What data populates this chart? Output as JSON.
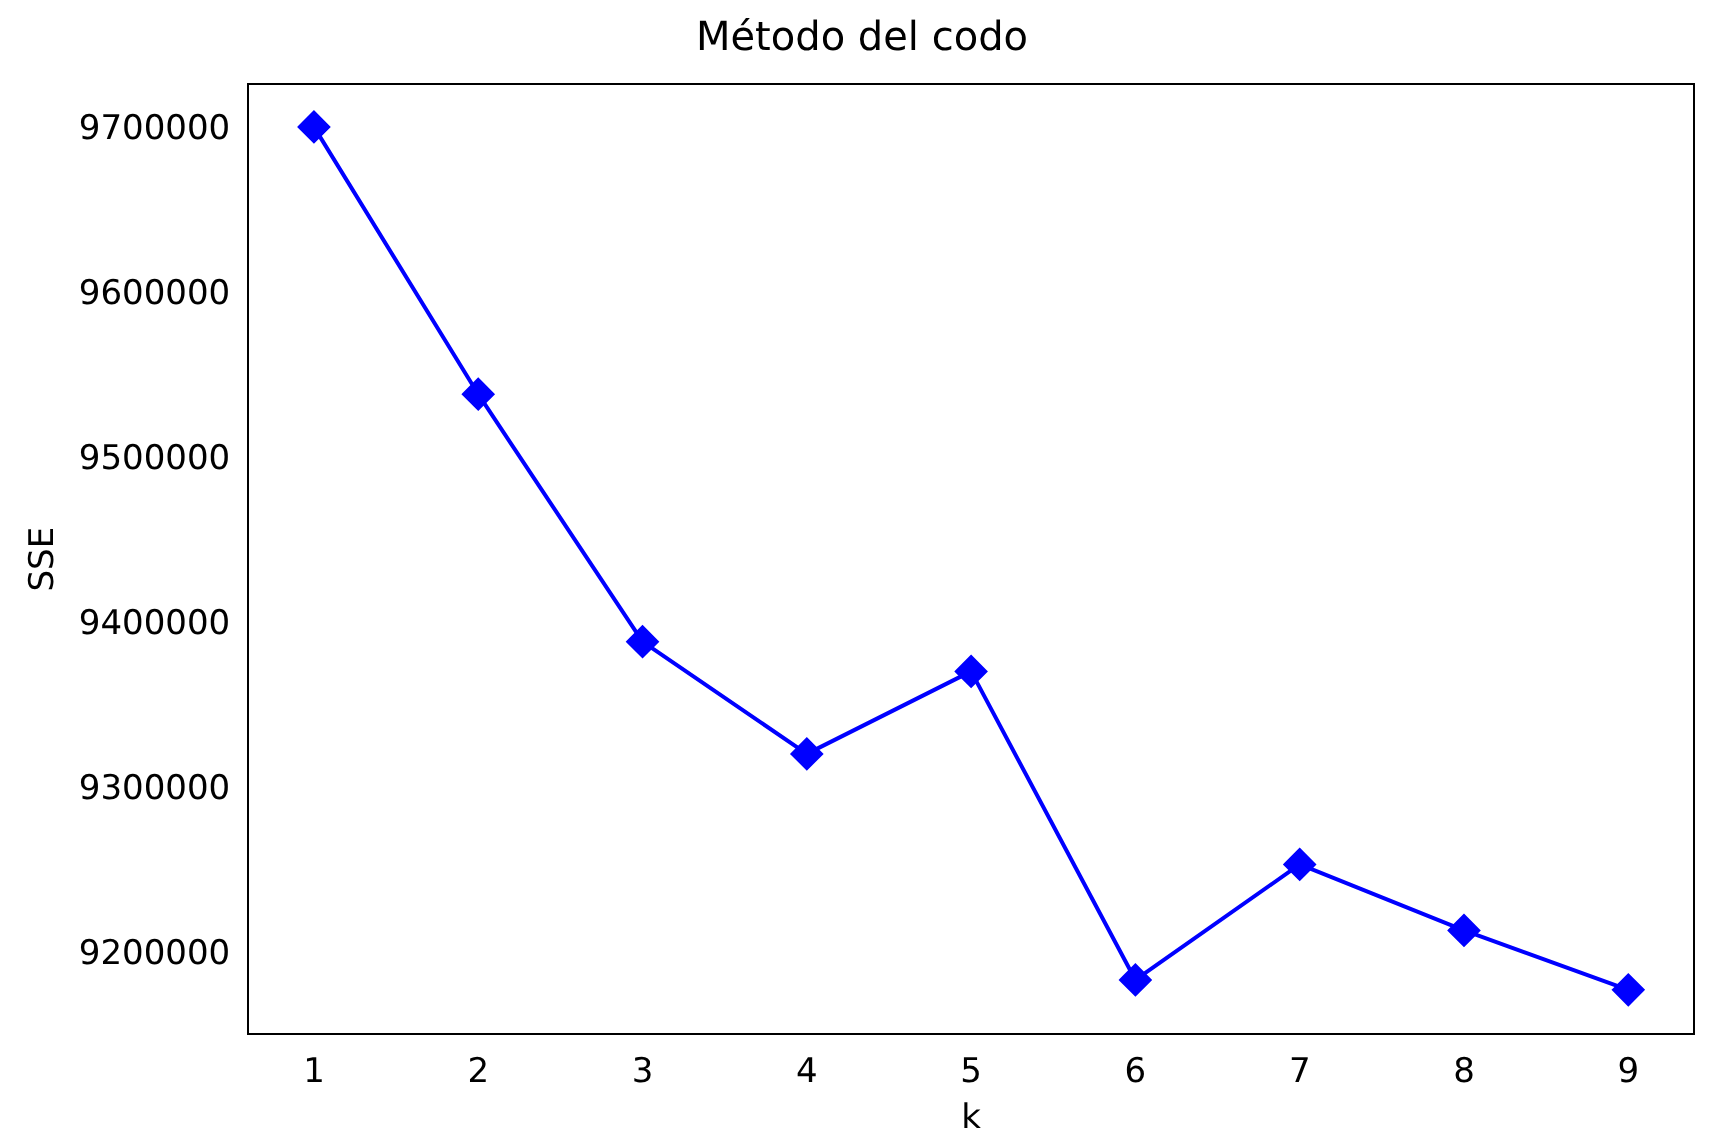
{
  "chart_data": {
    "type": "line",
    "title": "Método del codo",
    "xlabel": "k",
    "ylabel": "SSE",
    "x": [
      1,
      2,
      3,
      4,
      5,
      6,
      7,
      8,
      9
    ],
    "series": [
      {
        "color": "#0000ff",
        "values": [
          9702000,
          9540000,
          9390000,
          9322000,
          9372000,
          9185000,
          9255000,
          9215000,
          9179000
        ]
      }
    ],
    "xlim": [
      0.6,
      9.4
    ],
    "xticks": [
      1,
      2,
      3,
      4,
      5,
      6,
      7,
      8,
      9
    ],
    "ylim": [
      9152000,
      9728000
    ],
    "yticks": [
      9200000,
      9300000,
      9400000,
      9500000,
      9600000,
      9700000
    ],
    "grid": false,
    "legend": false,
    "marker": "diamond",
    "line_style": "solid"
  }
}
